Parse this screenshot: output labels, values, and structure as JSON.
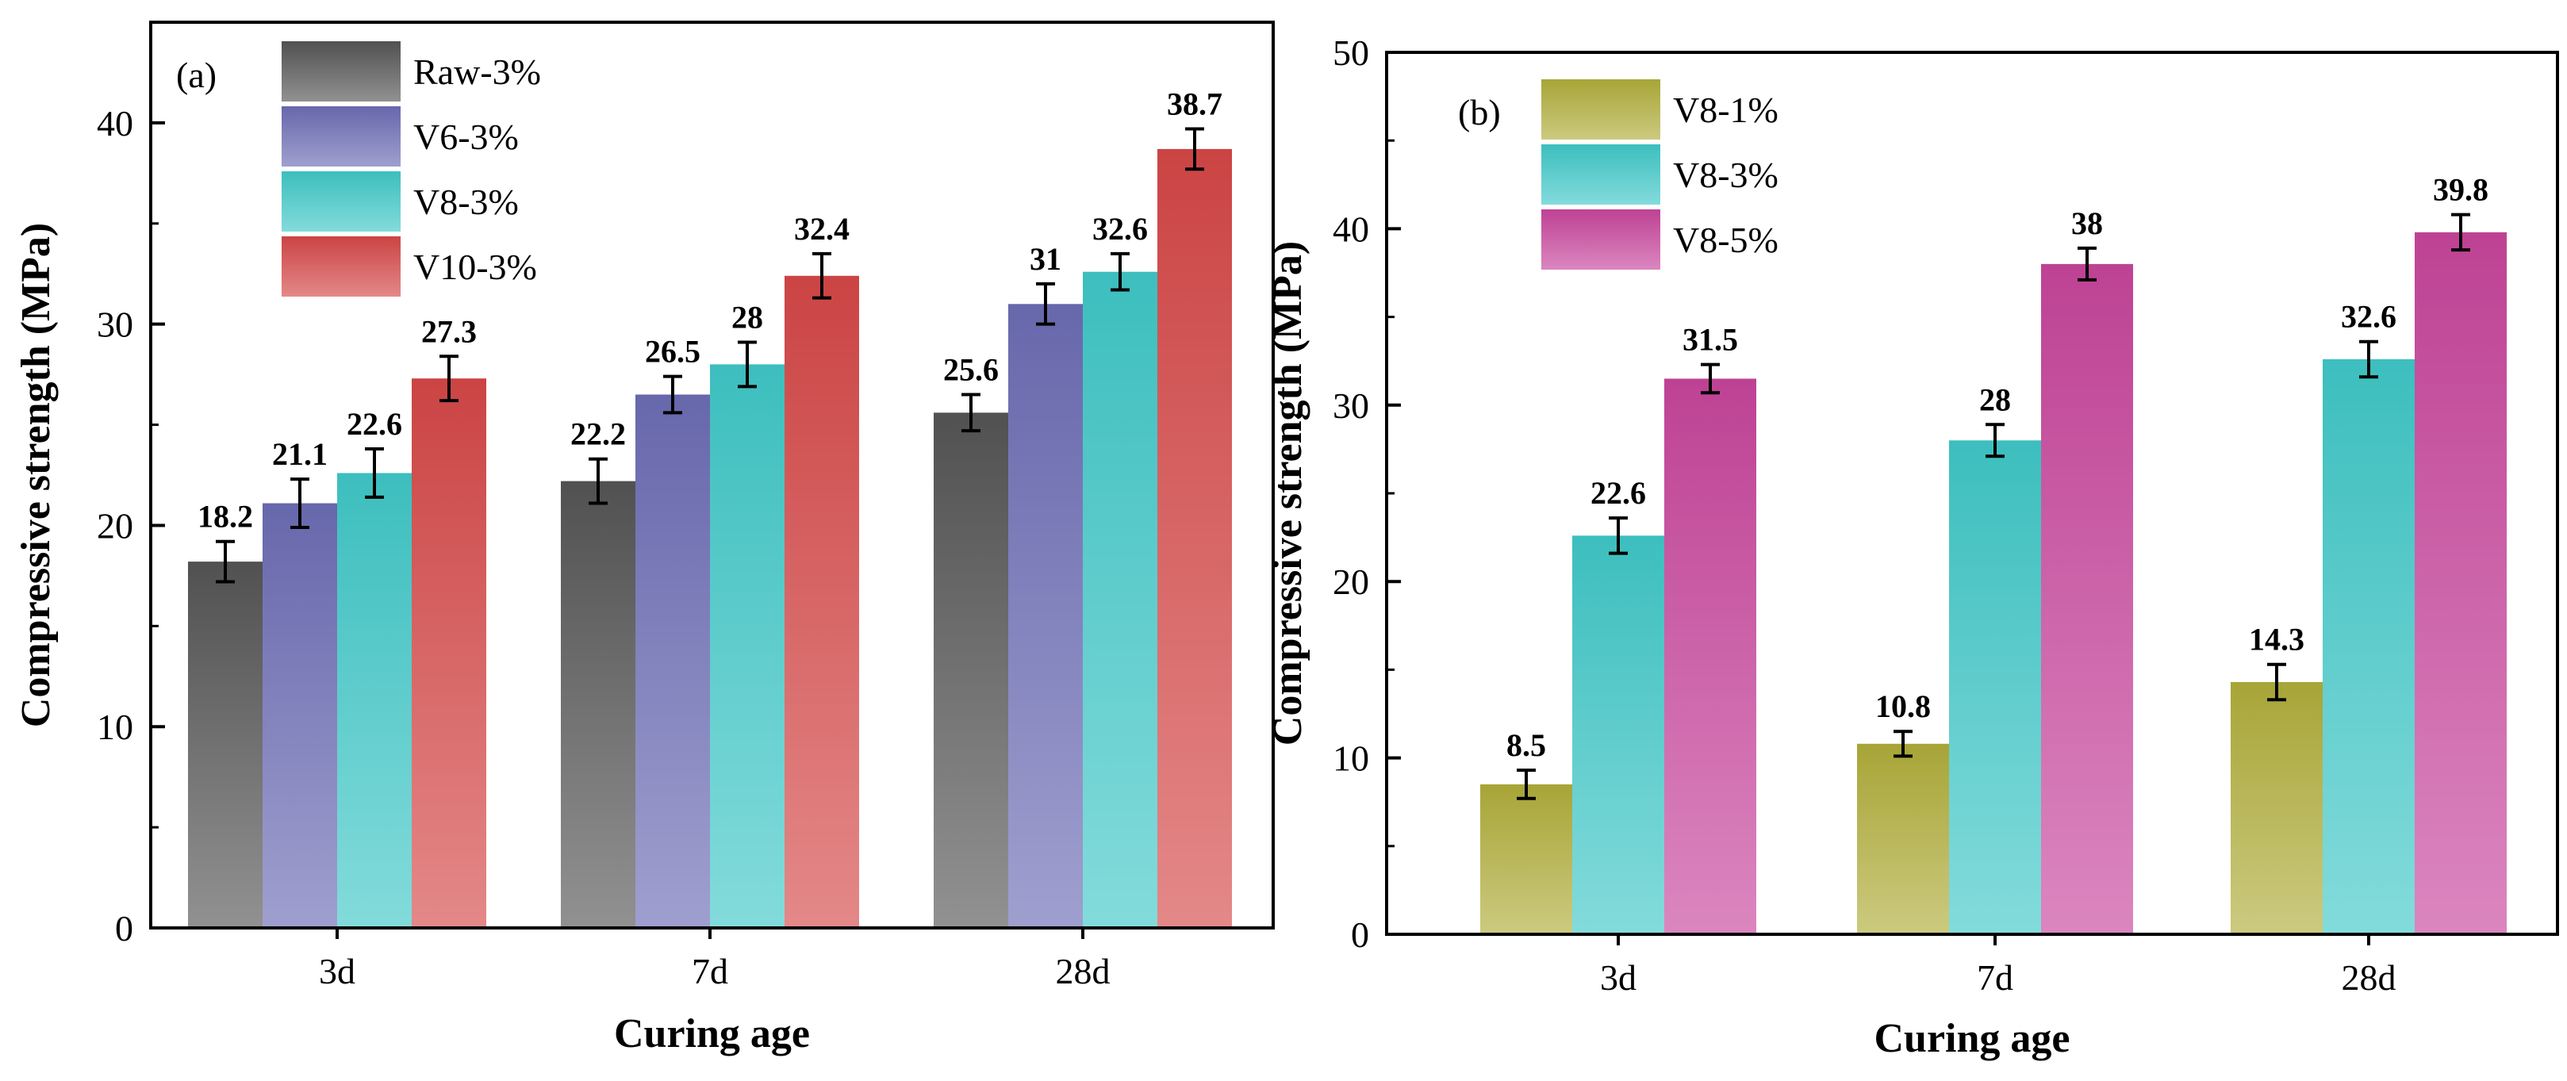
{
  "chart_data": [
    {
      "type": "bar",
      "panel_label": "(a)",
      "categories": [
        "3d",
        "7d",
        "28d"
      ],
      "series": [
        {
          "name": "Raw-3%",
          "color": "#555555",
          "values": [
            18.2,
            22.2,
            25.6
          ],
          "labels": [
            "18.2",
            "22.2",
            "25.6"
          ],
          "errors": [
            1.0,
            1.1,
            0.9
          ]
        },
        {
          "name": "V6-3%",
          "color": "#6c6cb5",
          "values": [
            21.1,
            26.5,
            31.0
          ],
          "labels": [
            "21.1",
            "26.5",
            "31"
          ],
          "errors": [
            1.2,
            0.9,
            1.0
          ]
        },
        {
          "name": "V8-3%",
          "color": "#40c8c8",
          "values": [
            22.6,
            28.0,
            32.6
          ],
          "labels": [
            "22.6",
            "28",
            "32.6"
          ],
          "errors": [
            1.2,
            1.1,
            0.9
          ]
        },
        {
          "name": "V10-3%",
          "color": "#d64848",
          "values": [
            27.3,
            32.4,
            38.7
          ],
          "labels": [
            "27.3",
            "32.4",
            "38.7"
          ],
          "errors": [
            1.1,
            1.1,
            1.0
          ]
        }
      ],
      "xlabel": "Curing age",
      "ylabel": "Compressive strength (MPa)",
      "ylim": [
        0,
        45
      ],
      "yticks": [
        0,
        10,
        20,
        30,
        40
      ],
      "legend_position": "top-left",
      "grid": false
    },
    {
      "type": "bar",
      "panel_label": "(b)",
      "categories": [
        "3d",
        "7d",
        "28d"
      ],
      "series": [
        {
          "name": "V8-1%",
          "color": "#b0ae3a",
          "values": [
            8.5,
            10.8,
            14.3
          ],
          "labels": [
            "8.5",
            "10.8",
            "14.3"
          ],
          "errors": [
            0.8,
            0.7,
            1.0
          ]
        },
        {
          "name": "V8-3%",
          "color": "#40c8c8",
          "values": [
            22.6,
            28.0,
            32.6
          ],
          "labels": [
            "22.6",
            "28",
            "32.6"
          ],
          "errors": [
            1.0,
            0.9,
            1.0
          ]
        },
        {
          "name": "V8-5%",
          "color": "#c8459c",
          "values": [
            31.5,
            38.0,
            39.8
          ],
          "labels": [
            "31.5",
            "38",
            "39.8"
          ],
          "errors": [
            0.8,
            0.9,
            1.0
          ]
        }
      ],
      "xlabel": "Curing age",
      "ylabel": "Compressive strength (MPa)",
      "ylim": [
        0,
        50
      ],
      "yticks": [
        0,
        10,
        20,
        30,
        40,
        50
      ],
      "legend_position": "top-left",
      "grid": false
    }
  ]
}
